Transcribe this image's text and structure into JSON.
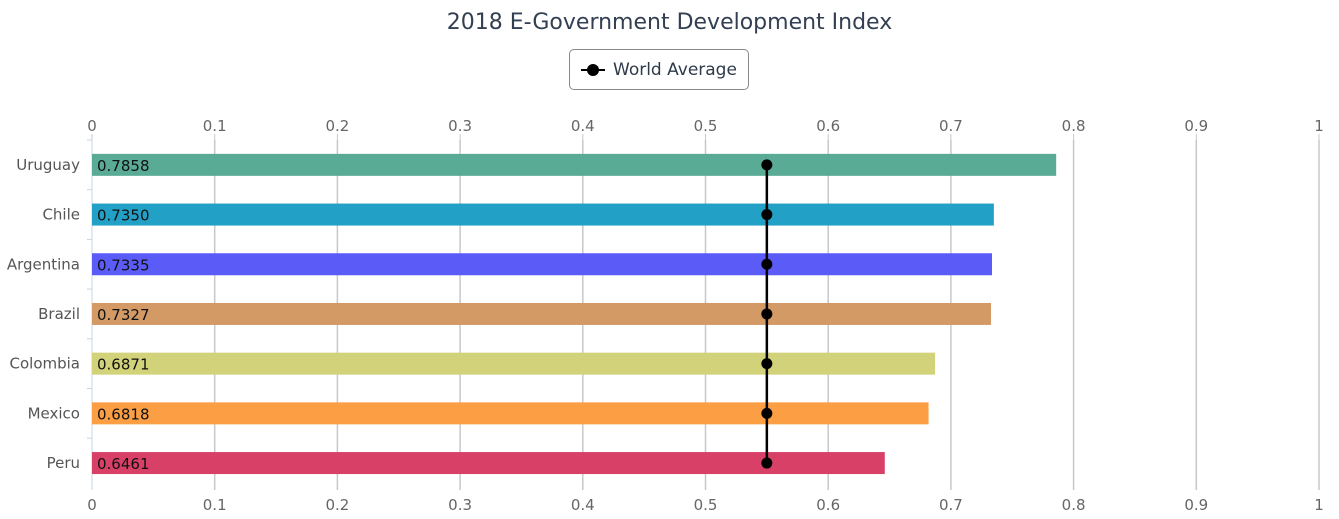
{
  "chart_data": {
    "type": "bar",
    "orientation": "horizontal",
    "title": "2018 E-Government Development Index",
    "categories": [
      "Uruguay",
      "Chile",
      "Argentina",
      "Brazil",
      "Colombia",
      "Mexico",
      "Peru"
    ],
    "values": [
      0.7858,
      0.735,
      0.7335,
      0.7327,
      0.6871,
      0.6818,
      0.6461
    ],
    "value_labels": [
      "0.7858",
      "0.7350",
      "0.7335",
      "0.7327",
      "0.6871",
      "0.6818",
      "0.6461"
    ],
    "bar_colors": [
      "#5aab96",
      "#23a0c6",
      "#5b5bf8",
      "#d49a66",
      "#d2d27a",
      "#fc9e44",
      "#d84067"
    ],
    "overlay_series": {
      "name": "World Average",
      "type": "line",
      "value": 0.55,
      "color": "#000000"
    },
    "xlim": [
      0,
      1
    ],
    "xticks": [
      "0",
      "0.1",
      "0.2",
      "0.3",
      "0.4",
      "0.5",
      "0.6",
      "0.7",
      "0.8",
      "0.9",
      "1"
    ],
    "axis_position": "top and bottom",
    "grid": true,
    "legend_position": "top-center"
  }
}
